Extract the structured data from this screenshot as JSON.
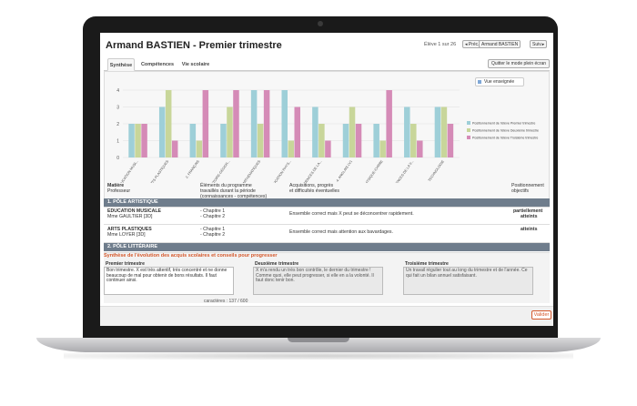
{
  "header": {
    "title": "Armand BASTIEN - Premier trimestre",
    "eleve_counter": "Élève 1 sur 26",
    "prev_label": "◂ Préc.",
    "student_select": "Armand BASTIEN",
    "next_label": "Suiv.▸"
  },
  "tabs": [
    {
      "label": "Synthèse"
    },
    {
      "label": "Compétences"
    },
    {
      "label": "Vie scolaire"
    }
  ],
  "fullscreen_button": "Quitter le mode plein écran",
  "vue_button": "Vue enseignée",
  "chart_data": {
    "type": "bar",
    "categories": [
      "1. EDUCATION MUSI...",
      "1. ARTS PLASTIQUES",
      "2. FRANÇAIS",
      "2. HISTOIRE-GÉOGR...",
      "3. MATHÉMATIQUES",
      "3. ÉDUCATION PHYS...",
      "4. SCIENCES DE LA...",
      "4. ANGLAIS LV1",
      "PHYSIQUE-CHIMIE",
      "SCIENCES DE LA V...",
      "TECHNOLOGIE"
    ],
    "series": [
      {
        "name": "Positionnement de l'élève Premier trimestre",
        "color": "#9ecfd8",
        "values": [
          2,
          3,
          2,
          2,
          4,
          4,
          3,
          2,
          2,
          3,
          3
        ]
      },
      {
        "name": "Positionnement de l'élève Deuxième trimestre",
        "color": "#c8d69a",
        "values": [
          2,
          4,
          1,
          3,
          2,
          1,
          2,
          3,
          1,
          2,
          3
        ]
      },
      {
        "name": "Positionnement de l'élève Troisième trimestre",
        "color": "#d58bb7",
        "values": [
          2,
          1,
          4,
          4,
          4,
          3,
          1,
          2,
          4,
          1,
          2
        ]
      }
    ],
    "ylim": [
      0,
      4
    ],
    "yticks": [
      0,
      1,
      2,
      3,
      4
    ],
    "legend": "right"
  },
  "table_header": {
    "col1_a": "Matière",
    "col1_b": "Professeur",
    "col2_a": "Éléments du programme",
    "col2_b": "travaillés durant la période",
    "col2_c": "(connaissances - compétences)",
    "col3_a": "Acquisitions, progrès",
    "col3_b": "et difficultés éventuelles",
    "col4_a": "Positionnement",
    "col4_b": "objectifs"
  },
  "sections": [
    {
      "label": "1. PÔLE ARTISTIQUE"
    },
    {
      "label": "2. PÔLE LITTÉRAIRE"
    }
  ],
  "rows": [
    {
      "subject": "EDUCATION MUSICALE",
      "teacher": "Mme GAULTIER [3D]",
      "ch1": "- Chapitre 1",
      "ch2": "- Chapitre 2",
      "comment": "Ensemble correct mais X peut se déconcentrer rapidement.",
      "pos_a": "partiellement",
      "pos_b": "atteints"
    },
    {
      "subject": "ARTS PLASTIQUES",
      "teacher": "Mme LOYER [3D]",
      "ch1": "- Chapitre 1",
      "ch2": "- Chapitre 2",
      "comment": "Ensemble correct mais attention aux bavardages.",
      "pos_a": "atteints",
      "pos_b": ""
    }
  ],
  "synthesis": {
    "title": "Synthèse de l'évolution des acquis scolaires et conseils pour progresser",
    "t1_label": "Premier trimestre",
    "t1_text": "Bon trimestre. X est très attentif, très concentré et ne donne beaucoup de mal pour obtenir de bons résultats. Il faut continuer ainsi.",
    "t2_label": "Deuxième trimestre",
    "t2_text": "X m'a rendu un très bon contrôle, le dernier du trimestre ! Comme quoi, elle peut progresser, si elle en a la volonté. Il faut donc tenir bon.",
    "t3_label": "Troisième trimestre",
    "t3_text": "Un travail régulier tout au long du trimestre et de l'année. Ce qui fait un bilan annuel satisfaisant.",
    "char_count": "caractères :  137 / 600"
  },
  "footer": {
    "valider_label": "Valider"
  }
}
